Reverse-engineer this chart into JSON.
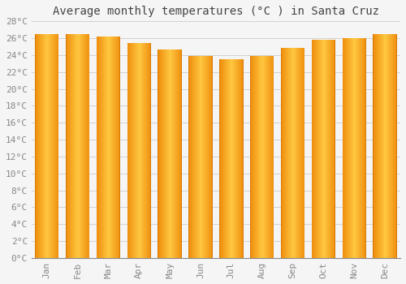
{
  "title": "Average monthly temperatures (°C ) in Santa Cruz",
  "months": [
    "Jan",
    "Feb",
    "Mar",
    "Apr",
    "May",
    "Jun",
    "Jul",
    "Aug",
    "Sep",
    "Oct",
    "Nov",
    "Dec"
  ],
  "values": [
    26.5,
    26.5,
    26.2,
    25.4,
    24.7,
    23.9,
    23.5,
    23.9,
    24.9,
    25.8,
    26.0,
    26.5
  ],
  "bar_color_main": "#FFA500",
  "bar_color_edge": "#E07800",
  "bar_color_light": "#FFD080",
  "ylim": [
    0,
    28
  ],
  "ytick_step": 2,
  "background_color": "#f5f5f5",
  "plot_bg_color": "#f5f5f5",
  "grid_color": "#cccccc",
  "title_fontsize": 10,
  "tick_fontsize": 8,
  "tick_color": "#888888",
  "title_color": "#444444",
  "font_family": "monospace"
}
